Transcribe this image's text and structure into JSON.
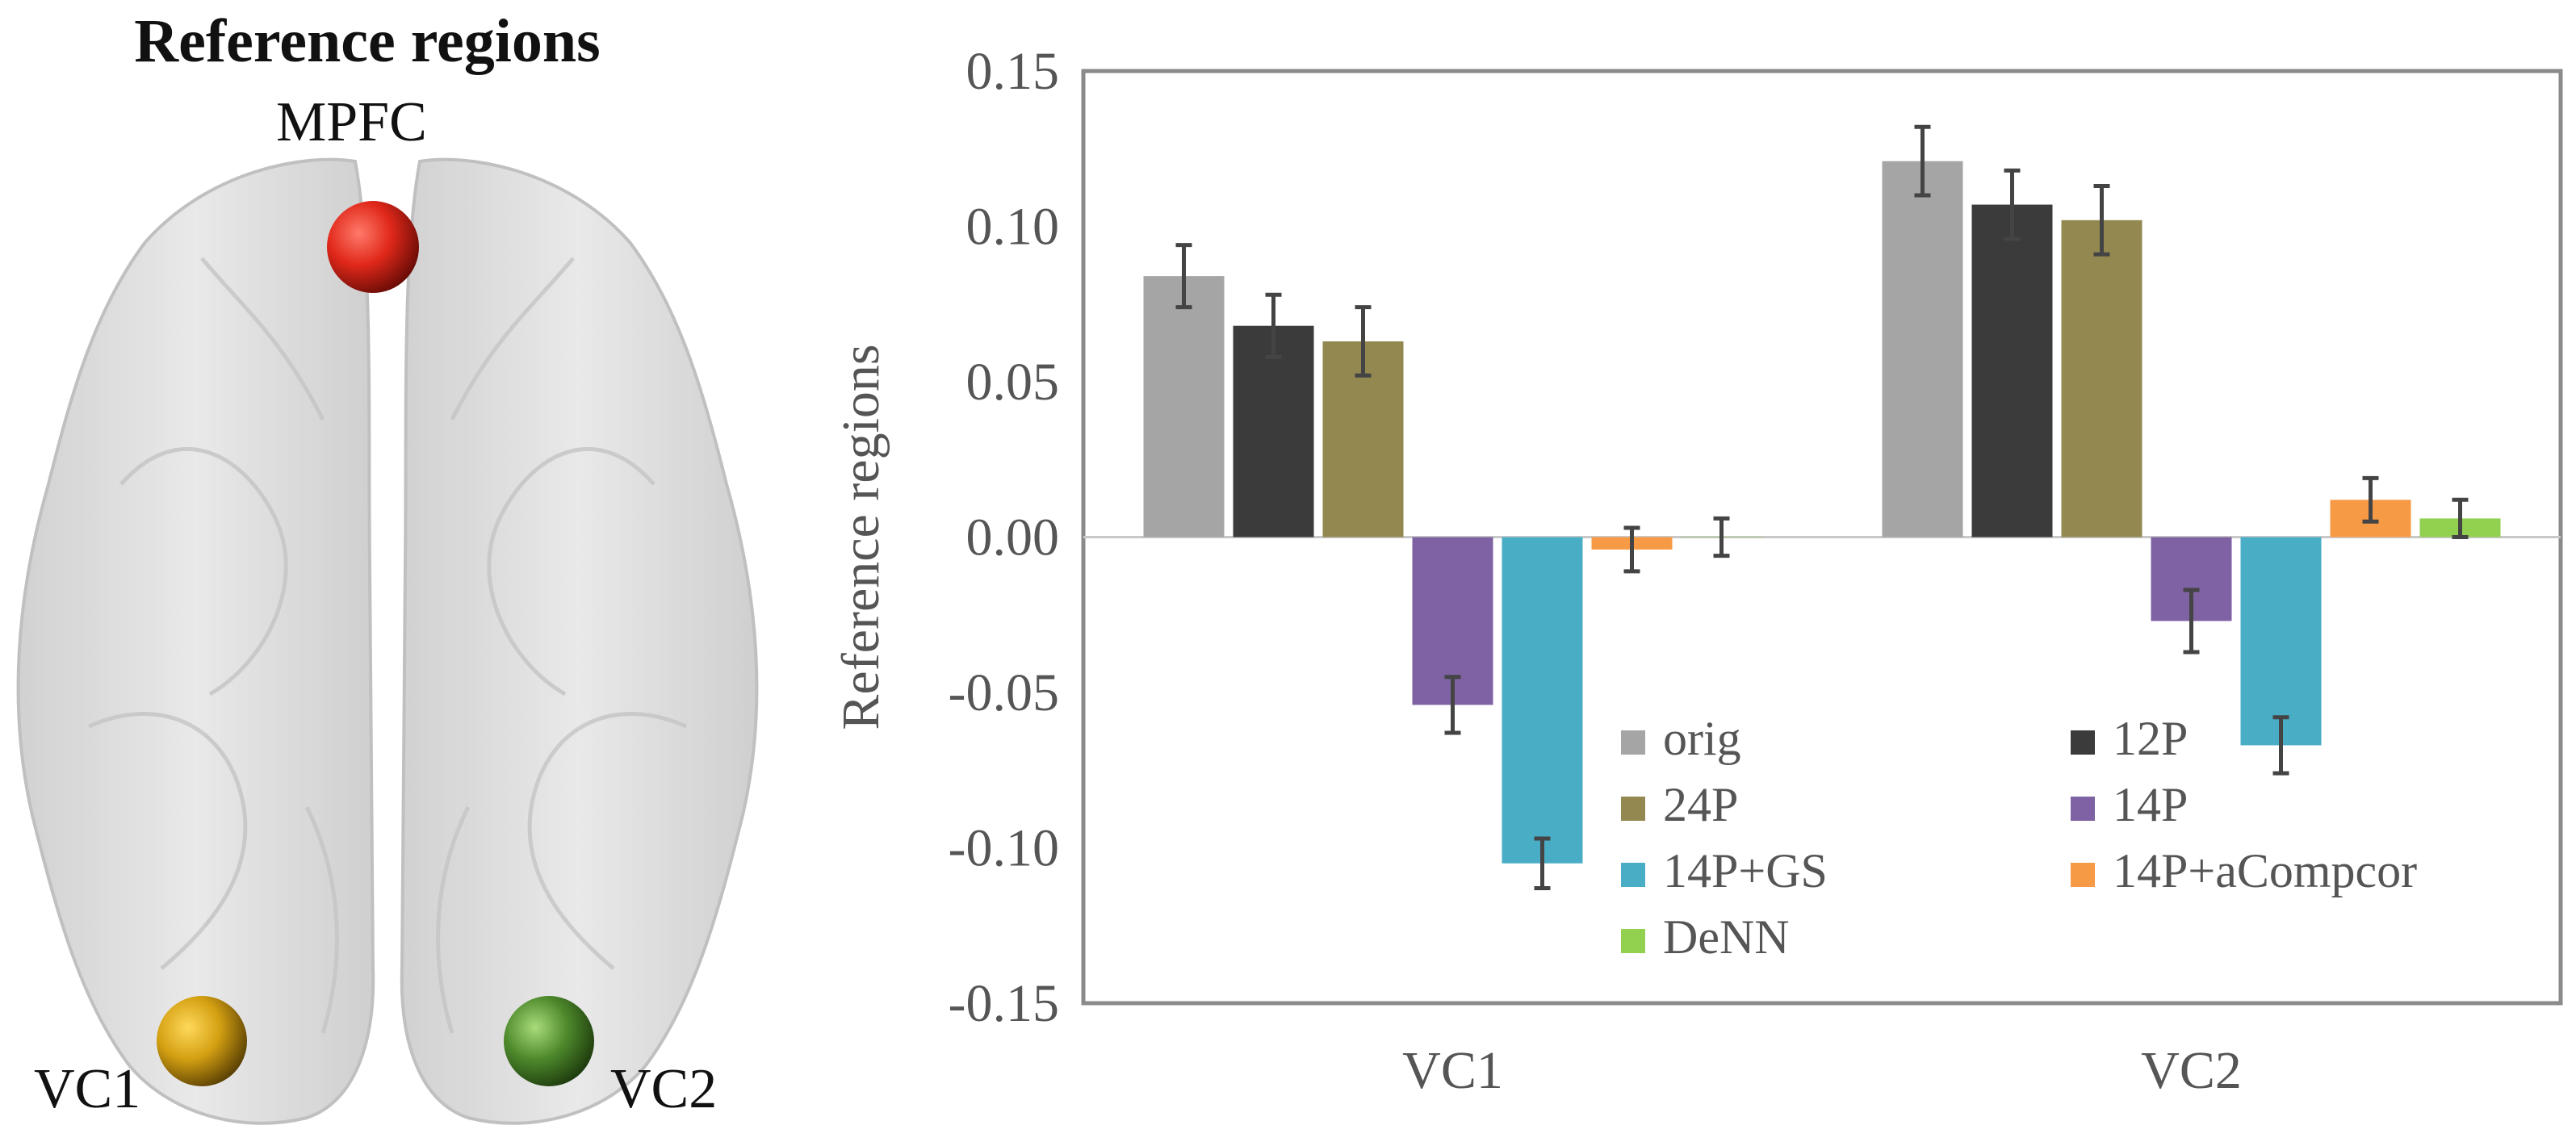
{
  "left_panel": {
    "title": "Reference regions",
    "regions": [
      {
        "label": "MPFC",
        "color": "#e0281a"
      },
      {
        "label": "VC1",
        "color": "#d4a012"
      },
      {
        "label": "VC2",
        "color": "#4e8a2c"
      }
    ]
  },
  "chart_data": {
    "type": "bar",
    "title": "",
    "xlabel": "",
    "ylabel": "Reference regions",
    "ylim": [
      -0.15,
      0.15
    ],
    "yticks": [
      0.15,
      0.1,
      0.05,
      0.0,
      -0.05,
      -0.1,
      -0.15
    ],
    "ytick_labels": [
      "0.15",
      "0.10",
      "0.05",
      "0.00",
      "-0.05",
      "-0.10",
      "-0.15"
    ],
    "grid": false,
    "legend_position": "bottom-center",
    "categories": [
      "VC1",
      "VC2"
    ],
    "series": [
      {
        "name": "orig",
        "color": "#a5a5a5",
        "values": [
          0.084,
          0.121
        ],
        "errors": [
          0.01,
          0.011
        ]
      },
      {
        "name": "12P",
        "color": "#3b3b3b",
        "values": [
          0.068,
          0.107
        ],
        "errors": [
          0.01,
          0.011
        ]
      },
      {
        "name": "24P",
        "color": "#938850",
        "values": [
          0.063,
          0.102
        ],
        "errors": [
          0.011,
          0.011
        ]
      },
      {
        "name": "14P",
        "color": "#7e62a3",
        "values": [
          -0.054,
          -0.027
        ],
        "errors": [
          0.009,
          0.01
        ]
      },
      {
        "name": "14P+GS",
        "color": "#4aadc6",
        "values": [
          -0.105,
          -0.067
        ],
        "errors": [
          0.008,
          0.009
        ]
      },
      {
        "name": "14P+aCompcor",
        "color": "#f79a46",
        "values": [
          -0.004,
          0.012
        ],
        "errors": [
          0.007,
          0.007
        ]
      },
      {
        "name": "DeNN",
        "color": "#92d050",
        "values": [
          0.0,
          0.006
        ],
        "errors": [
          0.006,
          0.006
        ]
      }
    ]
  }
}
